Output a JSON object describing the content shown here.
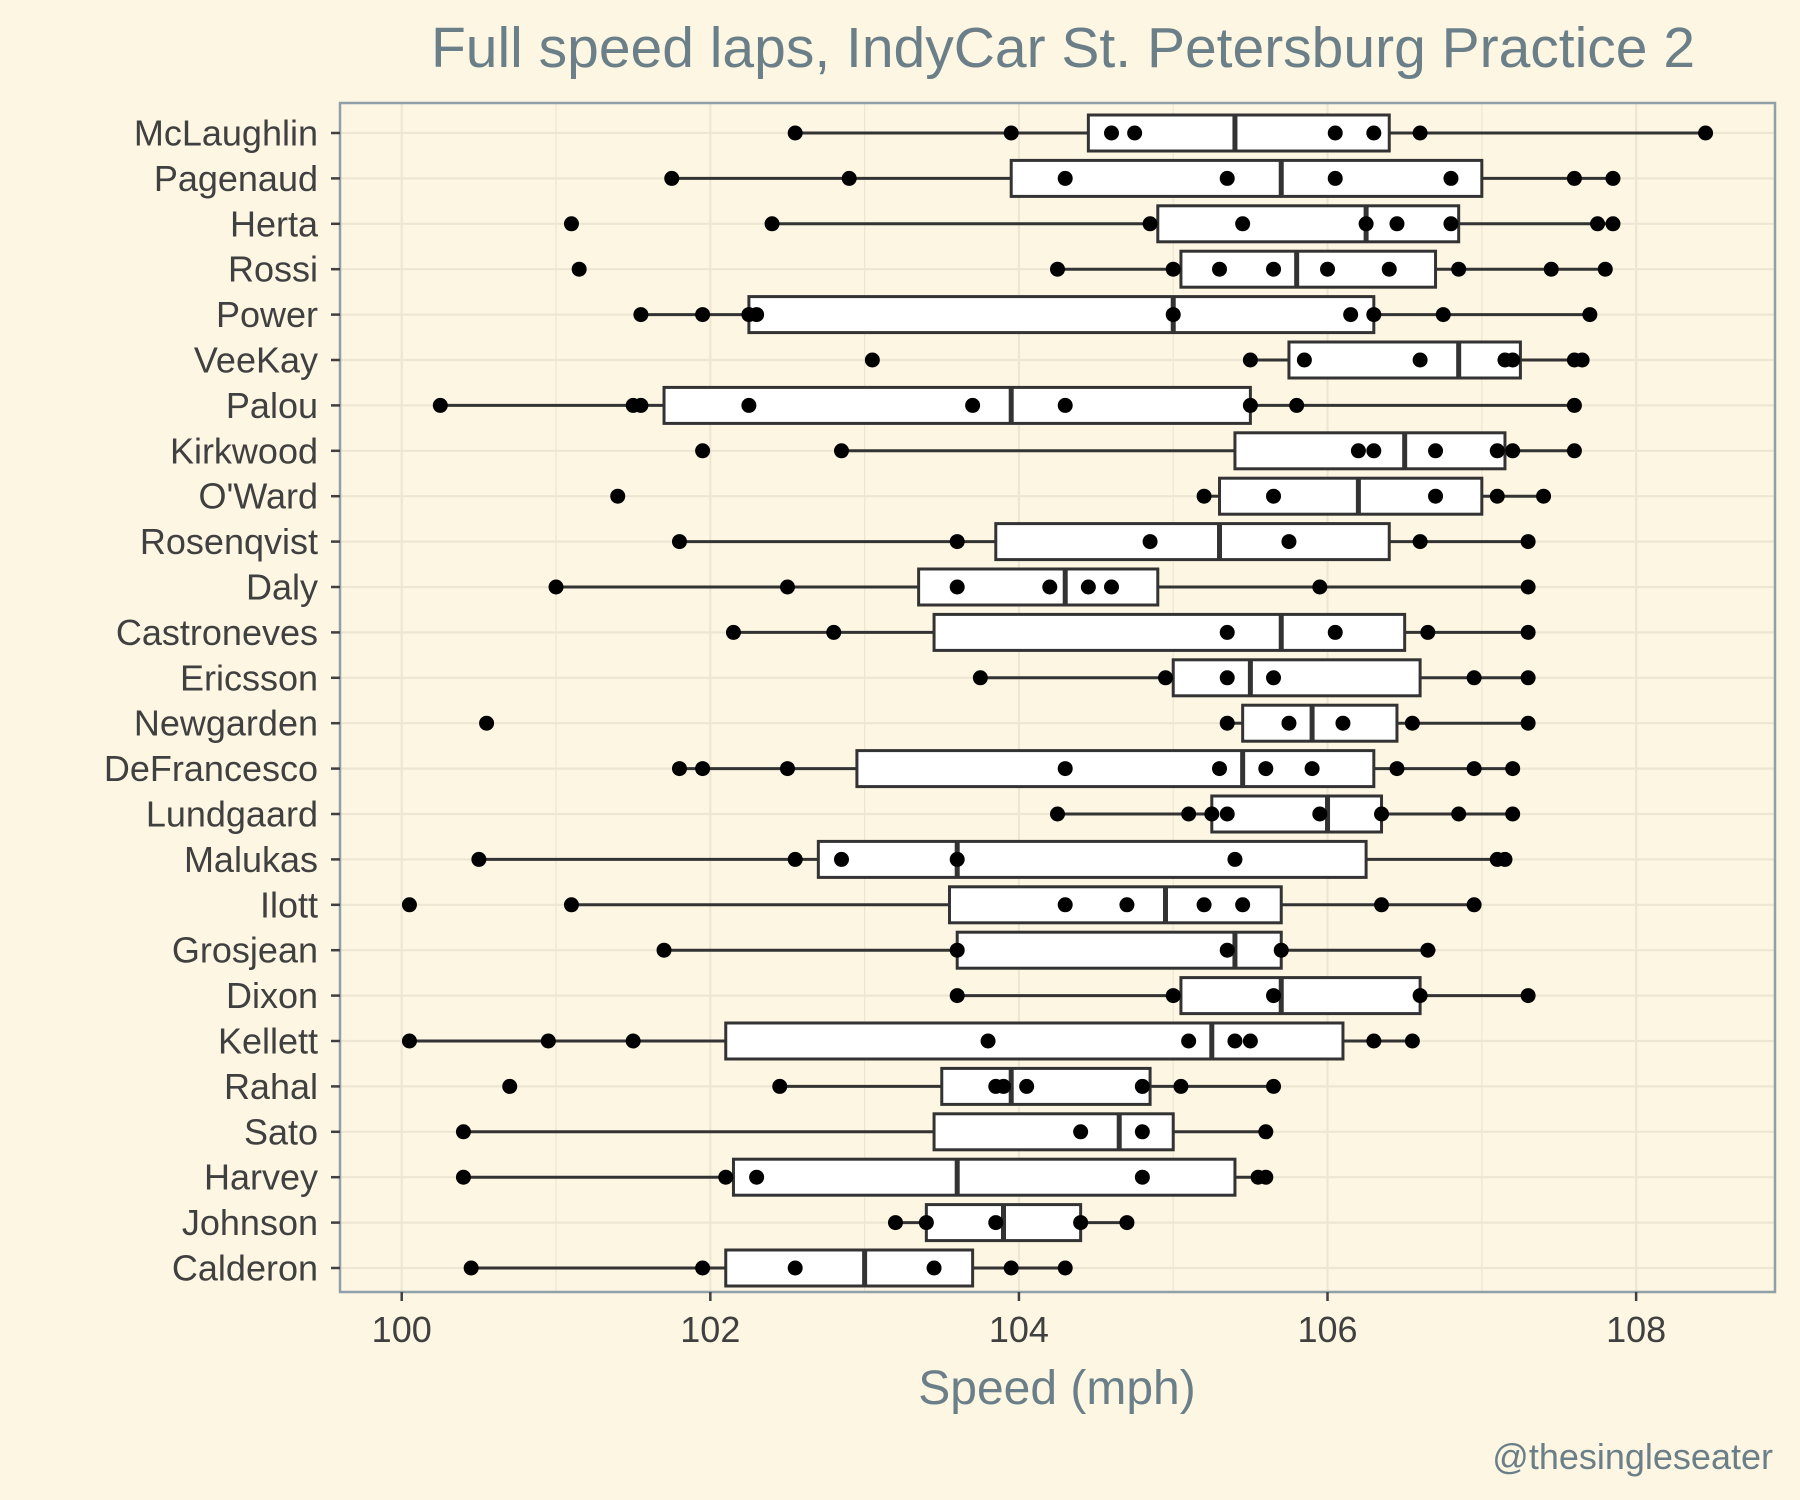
{
  "chart_data": {
    "type": "box",
    "title": "Full speed laps, IndyCar St. Petersburg Practice 2",
    "xlabel": "Speed (mph)",
    "ylabel": "",
    "xlim": [
      99.6,
      108.9
    ],
    "xticks": [
      100,
      102,
      104,
      106,
      108
    ],
    "grid": true,
    "credit": "@thesingleseater",
    "colors": {
      "background": "#fdf6e3",
      "grid": "#ede6d2",
      "box_fill": "#ffffff",
      "box_stroke": "#333333",
      "point": "#000000",
      "title": "#6b7f89",
      "axis_line": "#8fa0a8"
    },
    "drivers": [
      {
        "name": "McLaughlin",
        "whisker_low": 102.55,
        "q1": 104.45,
        "median": 105.4,
        "q3": 106.4,
        "whisker_high": 108.45,
        "outliers": [],
        "laps": [
          102.55,
          103.95,
          104.6,
          104.75,
          106.05,
          106.3,
          106.6,
          108.45
        ]
      },
      {
        "name": "Pagenaud",
        "whisker_low": 101.75,
        "q1": 103.95,
        "median": 105.7,
        "q3": 107.0,
        "whisker_high": 107.85,
        "outliers": [],
        "laps": [
          101.75,
          102.9,
          104.3,
          105.35,
          106.05,
          106.8,
          107.6,
          107.85
        ]
      },
      {
        "name": "Herta",
        "whisker_low": 102.4,
        "q1": 104.9,
        "median": 106.25,
        "q3": 106.85,
        "whisker_high": 107.85,
        "outliers": [
          101.1
        ],
        "laps": [
          101.1,
          102.4,
          104.85,
          105.45,
          106.25,
          106.45,
          106.8,
          107.75,
          107.85
        ]
      },
      {
        "name": "Rossi",
        "whisker_low": 104.25,
        "q1": 105.05,
        "median": 105.8,
        "q3": 106.7,
        "whisker_high": 107.8,
        "outliers": [
          101.15
        ],
        "laps": [
          101.15,
          104.25,
          105.0,
          105.3,
          105.65,
          106.0,
          106.4,
          106.85,
          107.45,
          107.8
        ]
      },
      {
        "name": "Power",
        "whisker_low": 101.55,
        "q1": 102.25,
        "median": 105.0,
        "q3": 106.3,
        "whisker_high": 107.7,
        "outliers": [],
        "laps": [
          101.55,
          101.95,
          102.25,
          102.3,
          105.0,
          106.15,
          106.3,
          106.75,
          107.7
        ]
      },
      {
        "name": "VeeKay",
        "whisker_low": 105.5,
        "q1": 105.75,
        "median": 106.85,
        "q3": 107.25,
        "whisker_high": 107.6,
        "outliers": [
          103.05
        ],
        "laps": [
          103.05,
          105.5,
          105.85,
          106.6,
          107.15,
          107.2,
          107.6,
          107.65
        ]
      },
      {
        "name": "Palou",
        "whisker_low": 100.25,
        "q1": 101.7,
        "median": 103.95,
        "q3": 105.5,
        "whisker_high": 107.6,
        "outliers": [],
        "laps": [
          100.25,
          101.5,
          101.55,
          102.25,
          103.7,
          104.3,
          105.5,
          105.8,
          107.6
        ]
      },
      {
        "name": "Kirkwood",
        "whisker_low": 102.85,
        "q1": 105.4,
        "median": 106.5,
        "q3": 107.15,
        "whisker_high": 107.6,
        "outliers": [
          101.95
        ],
        "laps": [
          101.95,
          102.85,
          106.2,
          106.3,
          106.7,
          107.1,
          107.2,
          107.6
        ]
      },
      {
        "name": "O'Ward",
        "whisker_low": 105.2,
        "q1": 105.3,
        "median": 106.2,
        "q3": 107.0,
        "whisker_high": 107.4,
        "outliers": [
          101.4
        ],
        "laps": [
          101.4,
          105.2,
          105.65,
          106.7,
          107.1,
          107.4
        ]
      },
      {
        "name": "Rosenqvist",
        "whisker_low": 101.8,
        "q1": 103.85,
        "median": 105.3,
        "q3": 106.4,
        "whisker_high": 107.3,
        "outliers": [],
        "laps": [
          101.8,
          103.6,
          104.85,
          105.75,
          106.6,
          107.3
        ]
      },
      {
        "name": "Daly",
        "whisker_low": 101.0,
        "q1": 103.35,
        "median": 104.3,
        "q3": 104.9,
        "whisker_high": 107.3,
        "outliers": [],
        "laps": [
          101.0,
          102.5,
          103.6,
          104.2,
          104.45,
          104.6,
          105.95,
          107.3
        ]
      },
      {
        "name": "Castroneves",
        "whisker_low": 102.15,
        "q1": 103.45,
        "median": 105.7,
        "q3": 106.5,
        "whisker_high": 107.3,
        "outliers": [],
        "laps": [
          102.15,
          102.8,
          105.35,
          106.05,
          106.65,
          107.3
        ]
      },
      {
        "name": "Ericsson",
        "whisker_low": 103.75,
        "q1": 105.0,
        "median": 105.5,
        "q3": 106.6,
        "whisker_high": 107.3,
        "outliers": [],
        "laps": [
          103.75,
          104.95,
          105.35,
          105.65,
          106.95,
          107.3
        ]
      },
      {
        "name": "Newgarden",
        "whisker_low": 105.35,
        "q1": 105.45,
        "median": 105.9,
        "q3": 106.45,
        "whisker_high": 107.3,
        "outliers": [
          100.55
        ],
        "laps": [
          100.55,
          105.35,
          105.75,
          106.1,
          106.55,
          107.3
        ]
      },
      {
        "name": "DeFrancesco",
        "whisker_low": 101.8,
        "q1": 102.95,
        "median": 105.45,
        "q3": 106.3,
        "whisker_high": 107.2,
        "outliers": [],
        "laps": [
          101.8,
          101.95,
          102.5,
          104.3,
          105.3,
          105.6,
          105.9,
          106.45,
          106.95,
          107.2
        ]
      },
      {
        "name": "Lundgaard",
        "whisker_low": 104.25,
        "q1": 105.25,
        "median": 106.0,
        "q3": 106.35,
        "whisker_high": 107.2,
        "outliers": [],
        "laps": [
          104.25,
          105.1,
          105.25,
          105.35,
          105.95,
          106.35,
          106.85,
          107.2
        ]
      },
      {
        "name": "Malukas",
        "whisker_low": 100.5,
        "q1": 102.7,
        "median": 103.6,
        "q3": 106.25,
        "whisker_high": 107.15,
        "outliers": [],
        "laps": [
          100.5,
          102.55,
          102.85,
          103.6,
          105.4,
          107.1,
          107.15
        ]
      },
      {
        "name": "Ilott",
        "whisker_low": 101.1,
        "q1": 103.55,
        "median": 104.95,
        "q3": 105.7,
        "whisker_high": 106.95,
        "outliers": [
          100.05
        ],
        "laps": [
          100.05,
          101.1,
          104.3,
          104.7,
          105.2,
          105.45,
          106.35,
          106.95
        ]
      },
      {
        "name": "Grosjean",
        "whisker_low": 101.7,
        "q1": 103.6,
        "median": 105.4,
        "q3": 105.7,
        "whisker_high": 106.7,
        "outliers": [],
        "laps": [
          101.7,
          103.6,
          105.35,
          105.7,
          106.65
        ]
      },
      {
        "name": "Dixon",
        "whisker_low": 103.6,
        "q1": 105.05,
        "median": 105.7,
        "q3": 106.6,
        "whisker_high": 107.3,
        "outliers": [],
        "laps": [
          103.6,
          105.0,
          105.65,
          106.6,
          107.3
        ]
      },
      {
        "name": "Kellett",
        "whisker_low": 100.05,
        "q1": 102.1,
        "median": 105.25,
        "q3": 106.1,
        "whisker_high": 106.55,
        "outliers": [],
        "laps": [
          100.05,
          100.95,
          101.5,
          103.8,
          105.1,
          105.4,
          105.5,
          106.3,
          106.55
        ]
      },
      {
        "name": "Rahal",
        "whisker_low": 102.45,
        "q1": 103.5,
        "median": 103.95,
        "q3": 104.85,
        "whisker_high": 105.65,
        "outliers": [
          100.7
        ],
        "laps": [
          100.7,
          102.45,
          103.85,
          103.9,
          104.05,
          104.8,
          105.05,
          105.65
        ]
      },
      {
        "name": "Sato",
        "whisker_low": 100.4,
        "q1": 103.45,
        "median": 104.65,
        "q3": 105.0,
        "whisker_high": 105.6,
        "outliers": [],
        "laps": [
          100.4,
          104.4,
          104.8,
          105.6
        ]
      },
      {
        "name": "Harvey",
        "whisker_low": 100.4,
        "q1": 102.15,
        "median": 103.6,
        "q3": 105.4,
        "whisker_high": 105.6,
        "outliers": [],
        "laps": [
          100.4,
          102.1,
          102.3,
          104.8,
          105.55,
          105.6
        ]
      },
      {
        "name": "Johnson",
        "whisker_low": 103.2,
        "q1": 103.4,
        "median": 103.9,
        "q3": 104.4,
        "whisker_high": 104.7,
        "outliers": [],
        "laps": [
          103.2,
          103.4,
          103.85,
          104.4,
          104.7
        ]
      },
      {
        "name": "Calderon",
        "whisker_low": 100.45,
        "q1": 102.1,
        "median": 103.0,
        "q3": 103.7,
        "whisker_high": 104.3,
        "outliers": [],
        "laps": [
          100.45,
          101.95,
          102.55,
          103.45,
          103.95,
          104.3
        ]
      }
    ]
  }
}
